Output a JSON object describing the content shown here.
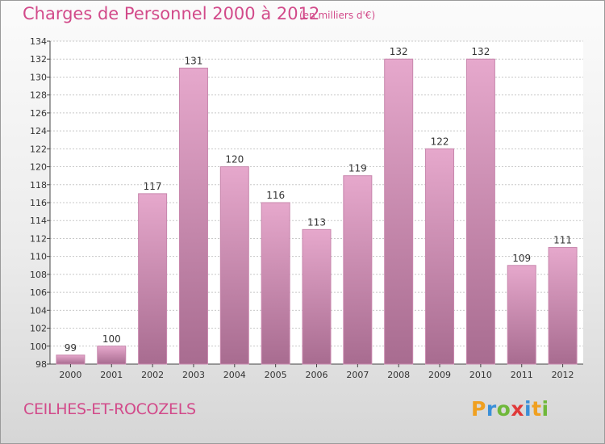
{
  "title": "Charges de Personnel 2000 à 2012",
  "unit_note": "(en milliers d'€)",
  "commune": "CEILHES-ET-ROCOZELS",
  "logo": {
    "text": "Proxiti",
    "letters": [
      {
        "ch": "P",
        "color": "#f0a020"
      },
      {
        "ch": "r",
        "color": "#3a8fd8"
      },
      {
        "ch": "o",
        "color": "#6fb83a"
      },
      {
        "ch": "x",
        "color": "#e03a3a"
      },
      {
        "ch": "i",
        "color": "#3a8fd8"
      },
      {
        "ch": "t",
        "color": "#f0a020"
      },
      {
        "ch": "i",
        "color": "#6fb83a"
      }
    ]
  },
  "colors": {
    "accent": "#d24a8a",
    "bar_light": "#e6a8cc",
    "bar_dark": "#a86c90",
    "bar_edge": "#c887ad"
  },
  "chart_data": {
    "type": "bar",
    "categories": [
      "2000",
      "2001",
      "2002",
      "2003",
      "2004",
      "2005",
      "2006",
      "2007",
      "2008",
      "2009",
      "2010",
      "2011",
      "2012"
    ],
    "values": [
      99,
      100,
      117,
      131,
      120,
      116,
      113,
      119,
      132,
      122,
      132,
      109,
      111
    ],
    "ylim": [
      98,
      134
    ],
    "yticks": [
      98,
      100,
      102,
      104,
      106,
      108,
      110,
      112,
      114,
      116,
      118,
      120,
      122,
      124,
      126,
      128,
      130,
      132,
      134
    ],
    "grid": true,
    "xlabel": "",
    "ylabel": ""
  }
}
